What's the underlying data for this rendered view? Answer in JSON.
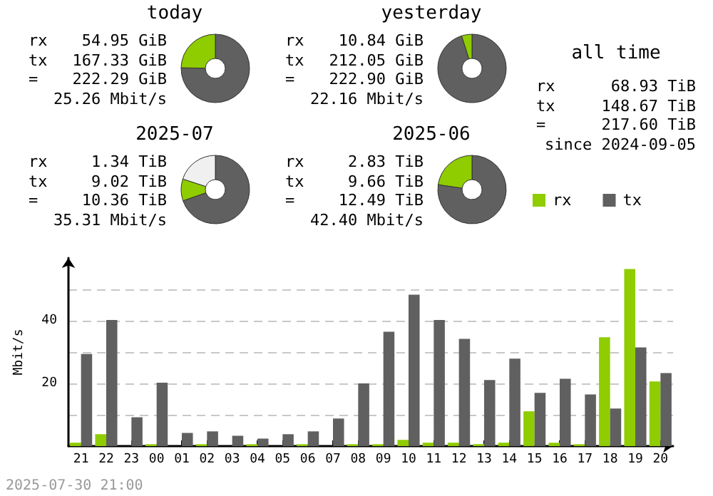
{
  "chart_data": [
    {
      "type": "donut",
      "title": "today",
      "categories": [
        null,
        null
      ],
      "values": [
        75.3,
        24.7
      ],
      "colors": [
        "#606060",
        "#8fcc00"
      ],
      "annotations": [
        "rx 54.95 GiB",
        "tx 167.33 GiB",
        "= 222.29 GiB",
        "25.26 Mbit/s"
      ]
    },
    {
      "type": "donut",
      "title": "yesterday",
      "categories": [
        null,
        null
      ],
      "values": [
        95.1,
        4.9
      ],
      "colors": [
        "#606060",
        "#8fcc00"
      ],
      "annotations": [
        "rx 10.84 GiB",
        "tx 212.05 GiB",
        "= 222.90 GiB",
        "22.16 Mbit/s"
      ]
    },
    {
      "type": "donut",
      "title": "2025-07",
      "categories": [
        null,
        null,
        null
      ],
      "values": [
        69.7,
        10.3,
        20.0
      ],
      "colors": [
        "#606060",
        "#8fcc00",
        "#f0f0f0"
      ],
      "annotations": [
        "rx 1.34 TiB",
        "tx 9.02 TiB",
        "= 10.36 TiB",
        "35.31 Mbit/s"
      ]
    },
    {
      "type": "donut",
      "title": "2025-06",
      "categories": [
        null,
        null
      ],
      "values": [
        77.3,
        22.7
      ],
      "colors": [
        "#606060",
        "#8fcc00"
      ],
      "annotations": [
        "rx 2.83 TiB",
        "tx 9.66 TiB",
        "= 12.49 TiB",
        "42.40 Mbit/s"
      ]
    },
    {
      "type": "other",
      "title": "all time",
      "annotations": [
        "rx 68.93 TiB",
        "tx 148.67 TiB",
        "= 217.60 TiB",
        "since 2024-09-05"
      ]
    },
    {
      "type": "bar",
      "ylabel": "Mbit/s",
      "categories": [
        "21",
        "22",
        "23",
        "00",
        "01",
        "02",
        "03",
        "04",
        "05",
        "06",
        "07",
        "08",
        "09",
        "10",
        "11",
        "12",
        "13",
        "14",
        "15",
        "16",
        "17",
        "18",
        "19",
        "20"
      ],
      "series": [
        {
          "name": "rx",
          "color": "#8fcc00",
          "values": [
            1.1,
            3.8,
            0,
            0.6,
            0,
            0.6,
            0,
            0.6,
            0,
            0.6,
            0,
            0.6,
            0.6,
            2.0,
            1.1,
            1.1,
            0.6,
            1.1,
            11.1,
            1.1,
            0.6,
            34.7,
            56.5,
            20.6
          ]
        },
        {
          "name": "tx",
          "color": "#606060",
          "values": [
            29.4,
            40.2,
            9.2,
            20.2,
            4.2,
            4.7,
            3.3,
            2.4,
            3.8,
            4.7,
            8.8,
            20.0,
            36.5,
            48.3,
            40.2,
            34.2,
            21.1,
            27.9,
            17.0,
            21.5,
            16.5,
            12.0,
            31.5,
            23.3
          ]
        }
      ],
      "ylim": [
        0,
        60
      ],
      "yticks": [
        {
          "value": 10,
          "label": null
        },
        20,
        {
          "value": 30,
          "label": null
        },
        40,
        {
          "value": 50,
          "label": null
        }
      ],
      "grid": true,
      "legend": "top right",
      "annotations": [
        "2025-07-30 21:00"
      ]
    }
  ]
}
